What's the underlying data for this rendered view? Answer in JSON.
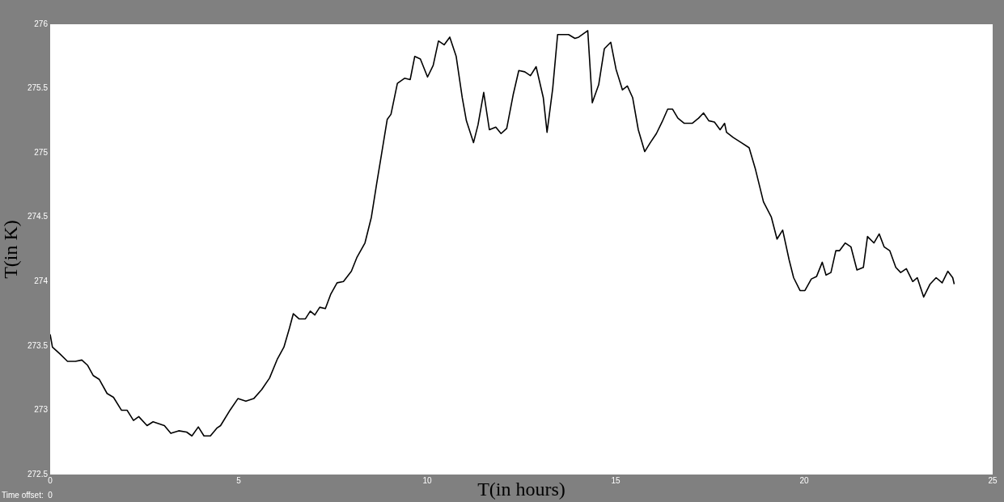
{
  "chart_data": {
    "type": "line",
    "xlabel": "T(in hours)",
    "ylabel": "T(in K)",
    "annotations": [
      "Time offset:  0"
    ],
    "xlim": [
      0,
      25
    ],
    "xticks": [
      0,
      5,
      10,
      15,
      20,
      25
    ],
    "ylim": [
      272.5,
      276
    ],
    "yticks": [
      272.5,
      273,
      273.5,
      274,
      274.5,
      275,
      275.5,
      276
    ],
    "grid": false,
    "legend": false,
    "marker": "none",
    "line_style": "solid",
    "series": [
      {
        "color": "#000000",
        "x": [
          0,
          0.06,
          0.25,
          0.46,
          0.67,
          0.84,
          0.99,
          1.14,
          1.3,
          1.51,
          1.68,
          1.89,
          2.04,
          2.21,
          2.35,
          2.57,
          2.73,
          3.03,
          3.2,
          3.41,
          3.62,
          3.76,
          3.93,
          4.08,
          4.25,
          4.42,
          4.52,
          4.77,
          4.98,
          5.19,
          5.4,
          5.61,
          5.82,
          6.03,
          6.2,
          6.35,
          6.45,
          6.6,
          6.77,
          6.9,
          7.02,
          7.15,
          7.3,
          7.44,
          7.61,
          7.78,
          7.99,
          8.14,
          8.35,
          8.52,
          8.66,
          8.79,
          8.94,
          9.04,
          9.21,
          9.4,
          9.55,
          9.67,
          9.82,
          10.01,
          10.16,
          10.3,
          10.45,
          10.6,
          10.77,
          10.93,
          11.04,
          11.23,
          11.35,
          11.5,
          11.65,
          11.82,
          11.96,
          12.11,
          12.28,
          12.43,
          12.59,
          12.74,
          12.89,
          13.08,
          13.18,
          13.33,
          13.46,
          13.75,
          13.92,
          14.02,
          14.26,
          14.38,
          14.55,
          14.7,
          14.87,
          15.01,
          15.18,
          15.31,
          15.45,
          15.6,
          15.77,
          15.92,
          16.08,
          16.23,
          16.38,
          16.51,
          16.65,
          16.82,
          17.03,
          17.2,
          17.33,
          17.47,
          17.62,
          17.77,
          17.89,
          17.94,
          18.12,
          18.33,
          18.54,
          18.71,
          18.92,
          19.13,
          19.28,
          19.43,
          19.6,
          19.72,
          19.89,
          20.02,
          20.19,
          20.33,
          20.48,
          20.58,
          20.71,
          20.84,
          20.94,
          21.09,
          21.24,
          21.4,
          21.57,
          21.68,
          21.85,
          21.99,
          22.12,
          22.27,
          22.43,
          22.56,
          22.71,
          22.88,
          23.0,
          23.17,
          23.34,
          23.5,
          23.66,
          23.81,
          23.94,
          23.98
        ],
        "values": [
          273.59,
          273.49,
          273.44,
          273.38,
          273.38,
          273.39,
          273.35,
          273.27,
          273.24,
          273.13,
          273.1,
          273.0,
          273.0,
          272.92,
          272.95,
          272.88,
          272.91,
          272.88,
          272.82,
          272.84,
          272.83,
          272.8,
          272.87,
          272.8,
          272.8,
          272.86,
          272.88,
          273.0,
          273.09,
          273.07,
          273.09,
          273.16,
          273.25,
          273.4,
          273.49,
          273.64,
          273.75,
          273.71,
          273.71,
          273.77,
          273.74,
          273.8,
          273.79,
          273.9,
          273.99,
          274.0,
          274.08,
          274.19,
          274.3,
          274.5,
          274.76,
          274.99,
          275.26,
          275.3,
          275.54,
          275.58,
          275.57,
          275.75,
          275.73,
          275.59,
          275.68,
          275.87,
          275.84,
          275.9,
          275.75,
          275.43,
          275.25,
          275.08,
          275.22,
          275.47,
          275.18,
          275.2,
          275.15,
          275.19,
          275.45,
          275.64,
          275.63,
          275.6,
          275.67,
          275.43,
          275.16,
          275.5,
          275.92,
          275.92,
          275.89,
          275.9,
          275.95,
          275.39,
          275.53,
          275.81,
          275.86,
          275.65,
          275.49,
          275.52,
          275.43,
          275.18,
          275.01,
          275.08,
          275.15,
          275.24,
          275.34,
          275.34,
          275.27,
          275.23,
          275.23,
          275.27,
          275.31,
          275.25,
          275.24,
          275.18,
          275.23,
          275.16,
          275.12,
          275.08,
          275.04,
          274.87,
          274.62,
          274.5,
          274.33,
          274.4,
          274.17,
          274.03,
          273.93,
          273.93,
          274.02,
          274.04,
          274.15,
          274.05,
          274.07,
          274.24,
          274.24,
          274.3,
          274.27,
          274.09,
          274.11,
          274.35,
          274.3,
          274.37,
          274.27,
          274.24,
          274.11,
          274.07,
          274.1,
          274.0,
          274.03,
          273.88,
          273.98,
          274.03,
          273.99,
          274.08,
          274.03,
          273.98
        ]
      }
    ]
  }
}
